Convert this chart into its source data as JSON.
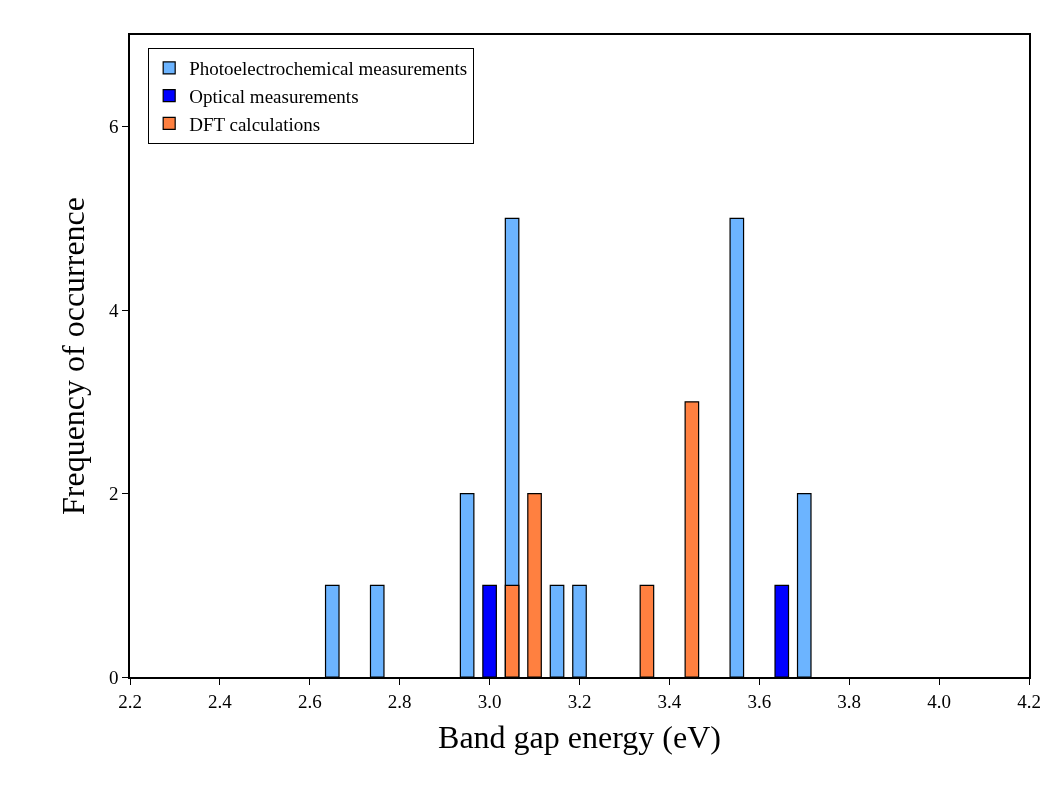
{
  "chart_data": {
    "type": "bar",
    "xlabel": "Band gap energy (eV)",
    "ylabel": "Frequency of occurrence",
    "xlim": [
      2.2,
      4.2
    ],
    "xticks": [
      2.2,
      2.4,
      2.6,
      2.8,
      {
        "value": 3,
        "label": "3.0"
      },
      3.2,
      3.4,
      3.6,
      3.8,
      {
        "value": 4,
        "label": "4.0"
      },
      4.2
    ],
    "ylim": [
      0,
      7
    ],
    "yticks": [
      0,
      2,
      4,
      6
    ],
    "legend": "top left",
    "series": [
      {
        "name": "Photoelectrochemical measurements",
        "color": "#6cb4ff",
        "x": [
          2.65,
          2.75,
          2.95,
          3.05,
          3.15,
          3.2,
          3.55,
          3.7
        ],
        "values": [
          1,
          1,
          2,
          5,
          1,
          1,
          5,
          2
        ]
      },
      {
        "name": "Optical measurements",
        "color": "#0000ff",
        "x": [
          3.0,
          3.65
        ],
        "values": [
          1,
          1
        ]
      },
      {
        "name": "DFT calculations",
        "color": "#ff8040",
        "x": [
          3.05,
          3.1,
          3.35,
          3.45
        ],
        "values": [
          1,
          2,
          1,
          3
        ]
      }
    ]
  }
}
